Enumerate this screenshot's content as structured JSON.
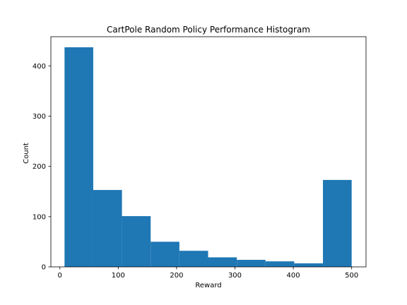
{
  "chart_data": {
    "type": "bar",
    "title": "CartPole Random Policy Performance Histogram",
    "xlabel": "Reward",
    "ylabel": "Count",
    "bin_edges": [
      8,
      57.2,
      106.4,
      155.6,
      204.8,
      254,
      303.2,
      352.4,
      401.6,
      450.8,
      500
    ],
    "values": [
      437,
      153,
      101,
      50,
      32,
      19,
      14,
      11,
      7,
      173
    ],
    "xlim": [
      -15.4,
      524.6
    ],
    "ylim": [
      0,
      458
    ],
    "xticks": [
      0,
      100,
      200,
      300,
      400,
      500
    ],
    "yticks": [
      0,
      100,
      200,
      300,
      400
    ],
    "bar_color": "#1f77b4",
    "grid": false,
    "legend": "none"
  }
}
